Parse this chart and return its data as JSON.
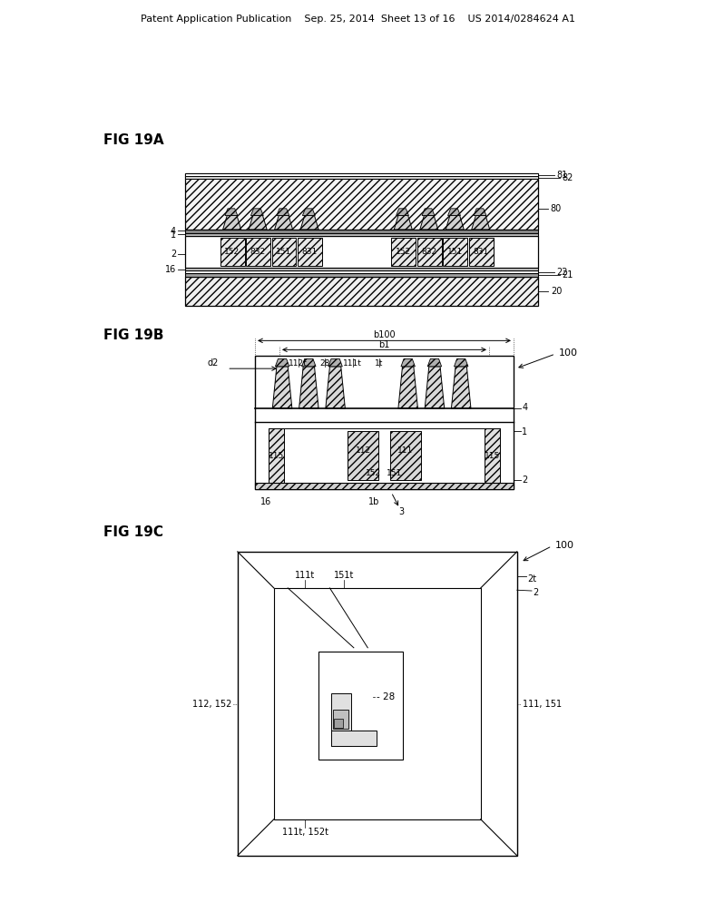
{
  "bg_color": "#ffffff",
  "header": "Patent Application Publication    Sep. 25, 2014  Sheet 13 of 16    US 2014/0284624 A1",
  "fig19a": "FIG 19A",
  "fig19b": "FIG 19B",
  "fig19c": "FIG 19C"
}
